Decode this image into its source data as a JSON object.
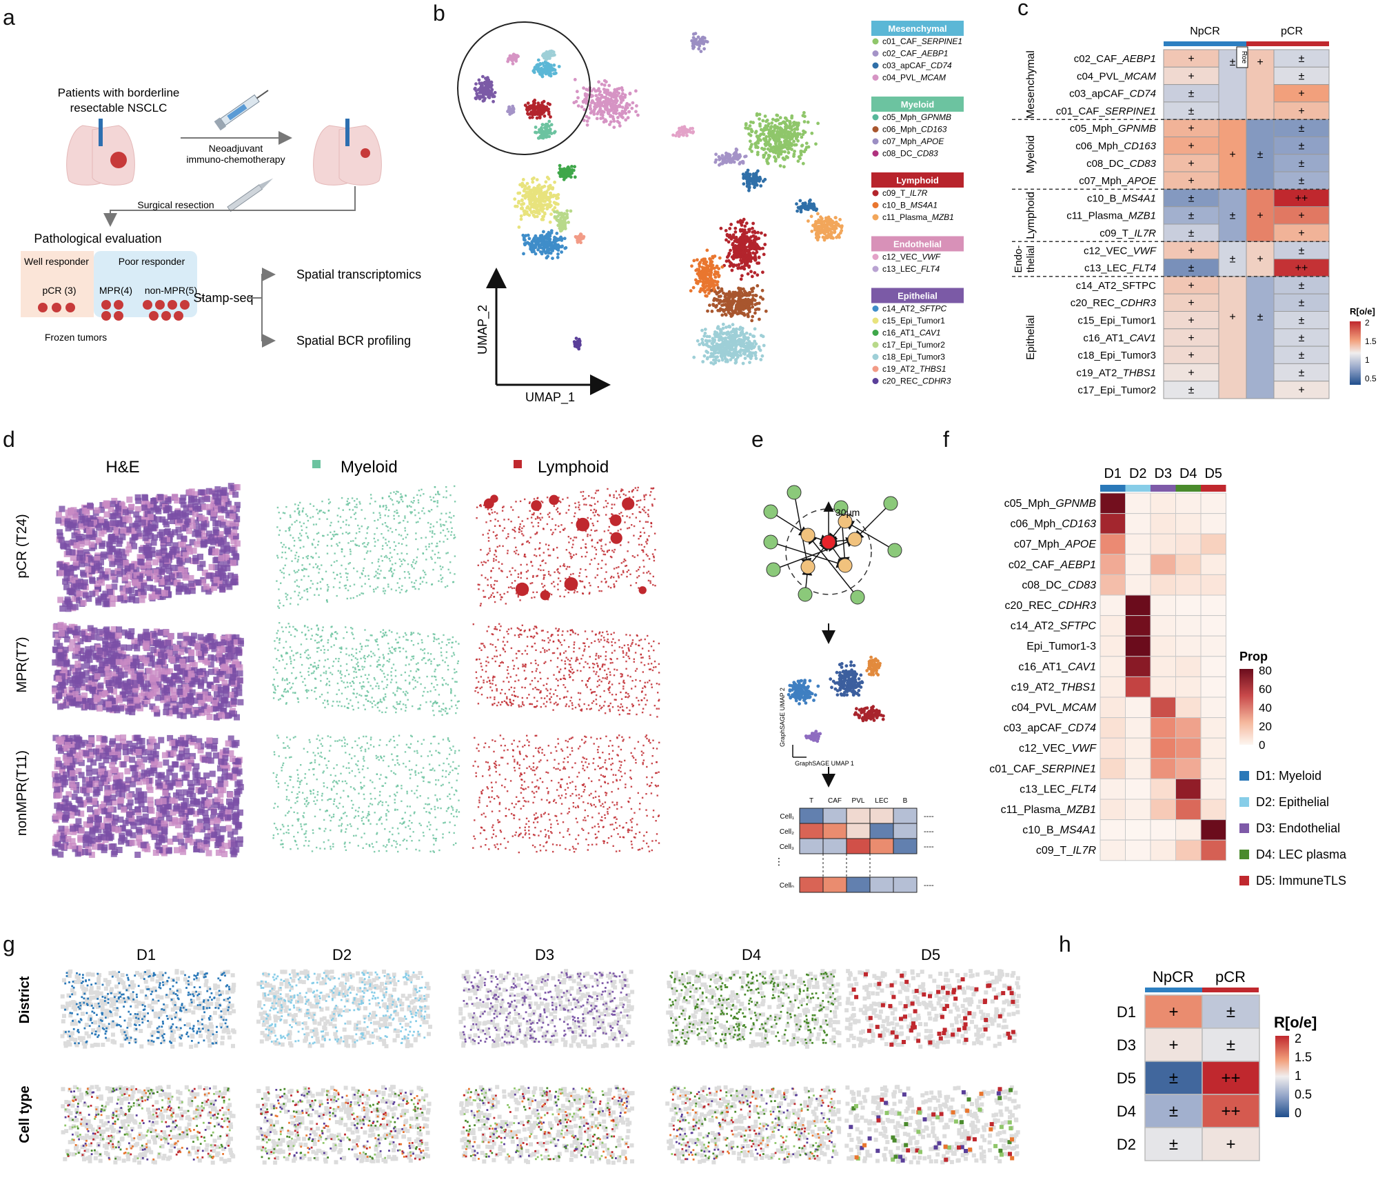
{
  "panels": {
    "a": "a",
    "b": "b",
    "c": "c",
    "d": "d",
    "e": "e",
    "f": "f",
    "g": "g",
    "h": "h"
  },
  "colors": {
    "mesenchymal_hdr": "#5bb7d6",
    "myeloid_hdr": "#6cc3a0",
    "lymphoid_hdr": "#b8242c",
    "endothelial_hdr": "#d891b8",
    "epithelial_hdr": "#7b5aa6",
    "npcr_bar": "#2d7fc1",
    "pcr_bar": "#c0282e",
    "D1": "#2a78b8",
    "D2": "#87cde8",
    "D3": "#7e5aa8",
    "D4": "#4a8a2c",
    "D5": "#c0282e",
    "myeloid_dot": "#6cc3a0",
    "lymphoid_dot": "#c0282e"
  },
  "panel_a": {
    "patients": "Patients with borderline",
    "patients2": "resectable NSCLC",
    "neo1": "Neoadjuvant",
    "neo2": "immuno-chemotherapy",
    "surgery": "Surgical resection",
    "patho": "Pathological evaluation",
    "well": "Well responder",
    "poor": "Poor responder",
    "pcr": "pCR (3)",
    "mpr": "MPR(4)",
    "nonmpr": "non-MPR(5)",
    "frozen": "Frozen tumors",
    "stamp": "Stamp-seq",
    "spatial_t": "Spatial transcriptomics",
    "spatial_b": "Spatial BCR profiling"
  },
  "panel_b": {
    "xlabel": "UMAP_1",
    "ylabel": "UMAP_2",
    "legend": [
      {
        "group": "Mesenchymal",
        "color": "#5bb7d6",
        "items": [
          {
            "pre": "c01_CAF_",
            "gene": "SERPINE1",
            "color": "#8fc66a"
          },
          {
            "pre": "c02_CAF_",
            "gene": "AEBP1",
            "color": "#a493c7"
          },
          {
            "pre": "c03_apCAF_",
            "gene": "CD74",
            "color": "#2f6fa8"
          },
          {
            "pre": "c04_PVL_",
            "gene": "MCAM",
            "color": "#d694c4"
          }
        ]
      },
      {
        "group": "Myeloid",
        "color": "#6cc3a0",
        "items": [
          {
            "pre": "c05_Mph_",
            "gene": "GPNMB",
            "color": "#57b79a"
          },
          {
            "pre": "c06_Mph_",
            "gene": "CD163",
            "color": "#a8562e"
          },
          {
            "pre": "c07_Mph_",
            "gene": "APOE",
            "color": "#9b8ec3"
          },
          {
            "pre": "c08_DC_",
            "gene": "CD83",
            "color": "#b0327e"
          }
        ]
      },
      {
        "group": "Lymphoid",
        "color": "#b8242c",
        "items": [
          {
            "pre": "c09_T_",
            "gene": "IL7R",
            "color": "#b3242c"
          },
          {
            "pre": "c10_B_",
            "gene": "MS4A1",
            "color": "#e9762f"
          },
          {
            "pre": "c11_Plasma_",
            "gene": "MZB1",
            "color": "#f2a65a"
          }
        ]
      },
      {
        "group": "Endothelial",
        "color": "#d891b8",
        "items": [
          {
            "pre": "c12_VEC_",
            "gene": "VWF",
            "color": "#e3a2c8"
          },
          {
            "pre": "c13_LEC_",
            "gene": "FLT4",
            "color": "#b9a3d2"
          }
        ]
      },
      {
        "group": "Epithelial",
        "color": "#7b5aa6",
        "items": [
          {
            "pre": "c14_AT2_",
            "gene": "SFTPC",
            "color": "#3f8dc9"
          },
          {
            "pre": "c15_Epi_Tumor1",
            "gene": "",
            "color": "#e8e37d"
          },
          {
            "pre": "c16_AT1_",
            "gene": "CAV1",
            "color": "#3fa74a"
          },
          {
            "pre": "c17_Epi_Tumor2",
            "gene": "",
            "color": "#b8d98a"
          },
          {
            "pre": "c18_Epi_Tumor3",
            "gene": "",
            "color": "#9ecfd7"
          },
          {
            "pre": "c19_AT2_",
            "gene": "THBS1",
            "color": "#f29b86"
          },
          {
            "pre": "c20_REC_",
            "gene": "CDHR3",
            "color": "#5a3f99"
          }
        ]
      }
    ]
  },
  "panel_c": {
    "col_npcr": "NpCR",
    "col_pcr": "pCR",
    "roe": "Roe",
    "legend_title": "R[o/e]",
    "legend_ticks": [
      "2",
      "1.5",
      "1",
      "0.5"
    ],
    "groups": [
      "Mesenchymal",
      "Myeloid",
      "Lymphoid",
      "Endo-",
      "thelial",
      "Epithelial"
    ],
    "rows": [
      {
        "pre": "c02_CAF_",
        "gene": "AEBP1",
        "n": "+",
        "p": "±",
        "nv": 1.2,
        "pv": 0.85
      },
      {
        "pre": "c04_PVL_",
        "gene": "MCAM",
        "n": "+",
        "p": "±",
        "nv": 1.1,
        "pv": 0.9
      },
      {
        "pre": "c03_apCAF_",
        "gene": "CD74",
        "n": "±",
        "p": "+",
        "nv": 0.8,
        "pv": 1.4
      },
      {
        "pre": "c01_CAF_",
        "gene": "SERPINE1",
        "n": "±",
        "p": "+",
        "nv": 0.85,
        "pv": 1.25
      },
      {
        "pre": "c05_Mph_",
        "gene": "GPNMB",
        "n": "+",
        "p": "±",
        "nv": 1.3,
        "pv": 0.45
      },
      {
        "pre": "c06_Mph_",
        "gene": "CD163",
        "n": "+",
        "p": "±",
        "nv": 1.35,
        "pv": 0.5
      },
      {
        "pre": "c08_DC_",
        "gene": "CD83",
        "n": "+",
        "p": "±",
        "nv": 1.25,
        "pv": 0.55
      },
      {
        "pre": "c07_Mph_",
        "gene": "APOE",
        "n": "+",
        "p": "±",
        "nv": 1.25,
        "pv": 0.6
      },
      {
        "pre": "c10_B_",
        "gene": "MS4A1",
        "n": "±",
        "p": "++",
        "nv": 0.45,
        "pv": 2.0
      },
      {
        "pre": "c11_Plasma_",
        "gene": "MZB1",
        "n": "±",
        "p": "+",
        "nv": 0.6,
        "pv": 1.6
      },
      {
        "pre": "c09_T_",
        "gene": "IL7R",
        "n": "±",
        "p": "+",
        "nv": 0.8,
        "pv": 1.3
      },
      {
        "pre": "c12_VEC_",
        "gene": "VWF",
        "n": "+",
        "p": "±",
        "nv": 1.2,
        "pv": 0.8
      },
      {
        "pre": "c13_LEC_",
        "gene": "FLT4",
        "n": "±",
        "p": "++",
        "nv": 0.4,
        "pv": 1.95
      },
      {
        "pre": "c14_AT2_SFTPC",
        "gene": "",
        "n": "+",
        "p": "±",
        "nv": 1.2,
        "pv": 0.75
      },
      {
        "pre": "c20_REC_",
        "gene": "CDHR3",
        "n": "+",
        "p": "±",
        "nv": 1.15,
        "pv": 0.75
      },
      {
        "pre": "c15_Epi_Tumor1",
        "gene": "",
        "n": "+",
        "p": "±",
        "nv": 1.1,
        "pv": 0.85
      },
      {
        "pre": "c16_AT1_",
        "gene": "CAV1",
        "n": "+",
        "p": "±",
        "nv": 1.1,
        "pv": 0.85
      },
      {
        "pre": "c18_Epi_Tumor3",
        "gene": "",
        "n": "+",
        "p": "±",
        "nv": 1.1,
        "pv": 0.85
      },
      {
        "pre": "c19_AT2_",
        "gene": "THBS1",
        "n": "+",
        "p": "±",
        "nv": 1.05,
        "pv": 0.9
      },
      {
        "pre": "c17_Epi_Tumor2",
        "gene": "",
        "n": "±",
        "p": "+",
        "nv": 0.95,
        "pv": 1.05
      }
    ],
    "group_blocks": [
      {
        "n": "±",
        "p": "+",
        "nv": 0.8,
        "pv": 1.2
      },
      {
        "n": "+",
        "p": "±",
        "nv": 1.4,
        "pv": 0.45
      },
      {
        "n": "±",
        "p": "+",
        "nv": 0.55,
        "pv": 1.55
      },
      {
        "n": "±",
        "p": "+",
        "nv": 0.85,
        "pv": 1.15
      },
      {
        "n": "+",
        "p": "±",
        "nv": 1.15,
        "pv": 0.6
      }
    ]
  },
  "panel_d": {
    "col_he": "H&E",
    "col_my": "Myeloid",
    "col_ly": "Lymphoid",
    "rows": [
      "pCR (T24)",
      "MPR(T7)",
      "nonMPR(T11)"
    ]
  },
  "panel_e": {
    "dist": "30μm",
    "umap_x": "GraphSAGE UMAP 1",
    "umap_y": "GraphSAGE UMAP 2",
    "cols": [
      "T",
      "CAF",
      "PVL",
      "LEC",
      "B"
    ],
    "cells": [
      "Cell₁",
      "Cell₂",
      "Cell₃",
      "Cellₙ"
    ],
    "dash": "----"
  },
  "panel_f": {
    "cols": [
      "D1",
      "D2",
      "D3",
      "D4",
      "D5"
    ],
    "legend_title": "Prop",
    "legend_ticks": [
      "80",
      "60",
      "40",
      "20",
      "0"
    ],
    "districts": [
      "D1: Myeloid",
      "D2: Epithelial",
      "D3: Endothelial",
      "D4: LEC plasma",
      "D5: ImmuneTLS"
    ],
    "rows": [
      {
        "pre": "c05_Mph_",
        "gene": "GPNMB",
        "v": [
          78,
          3,
          6,
          4,
          3
        ]
      },
      {
        "pre": "c06_Mph_",
        "gene": "CD163",
        "v": [
          65,
          3,
          8,
          6,
          3
        ]
      },
      {
        "pre": "c07_Mph_",
        "gene": "APOE",
        "v": [
          38,
          4,
          8,
          10,
          20
        ]
      },
      {
        "pre": "c02_CAF_",
        "gene": "AEBP1",
        "v": [
          30,
          4,
          28,
          18,
          6
        ]
      },
      {
        "pre": "c08_DC_",
        "gene": "CD83",
        "v": [
          25,
          4,
          12,
          10,
          10
        ]
      },
      {
        "pre": "c20_REC_",
        "gene": "CDHR3",
        "v": [
          3,
          80,
          3,
          2,
          2
        ]
      },
      {
        "pre": "c14_AT2_",
        "gene": "SFTPC",
        "v": [
          6,
          78,
          4,
          3,
          2
        ]
      },
      {
        "pre": "Epi_Tumor1-3",
        "gene": "",
        "v": [
          6,
          80,
          6,
          4,
          3
        ]
      },
      {
        "pre": "c16_AT1_",
        "gene": "CAV1",
        "v": [
          5,
          72,
          6,
          8,
          2
        ]
      },
      {
        "pre": "c19_AT2_",
        "gene": "THBS1",
        "v": [
          6,
          55,
          6,
          6,
          2
        ]
      },
      {
        "pre": "c04_PVL_",
        "gene": "MCAM",
        "v": [
          8,
          3,
          52,
          12,
          3
        ]
      },
      {
        "pre": "c03_apCAF_",
        "gene": "CD74",
        "v": [
          12,
          4,
          38,
          32,
          5
        ]
      },
      {
        "pre": "c12_VEC_",
        "gene": "VWF",
        "v": [
          10,
          5,
          40,
          36,
          5
        ]
      },
      {
        "pre": "c01_CAF_",
        "gene": "SERPINE1",
        "v": [
          16,
          5,
          36,
          30,
          5
        ]
      },
      {
        "pre": "c13_LEC_",
        "gene": "FLT4",
        "v": [
          4,
          2,
          14,
          70,
          4
        ]
      },
      {
        "pre": "c11_Plasma_",
        "gene": "MZB1",
        "v": [
          8,
          4,
          22,
          46,
          12
        ]
      },
      {
        "pre": "c10_B_",
        "gene": "MS4A1",
        "v": [
          2,
          1,
          2,
          5,
          82
        ]
      },
      {
        "pre": "c09_T_",
        "gene": "IL7R",
        "v": [
          4,
          2,
          6,
          22,
          48
        ]
      }
    ]
  },
  "panel_g": {
    "cols": [
      "D1",
      "D2",
      "D3",
      "D4",
      "D5"
    ],
    "row1": "District",
    "row2": "Cell type"
  },
  "panel_h": {
    "col_npcr": "NpCR",
    "col_pcr": "pCR",
    "legend_title": "R[o/e]",
    "legend_ticks": [
      "2",
      "1.5",
      "1",
      "0.5",
      "0"
    ],
    "rows": [
      {
        "label": "D1",
        "n": "+",
        "p": "±",
        "nv": 1.5,
        "pv": 0.75
      },
      {
        "label": "D3",
        "n": "+",
        "p": "±",
        "nv": 1.05,
        "pv": 0.95
      },
      {
        "label": "D5",
        "n": "±",
        "p": "++",
        "nv": 0.15,
        "pv": 2.0
      },
      {
        "label": "D4",
        "n": "±",
        "p": "++",
        "nv": 0.6,
        "pv": 1.75
      },
      {
        "label": "D2",
        "n": "±",
        "p": "+",
        "nv": 0.95,
        "pv": 1.05
      }
    ]
  }
}
